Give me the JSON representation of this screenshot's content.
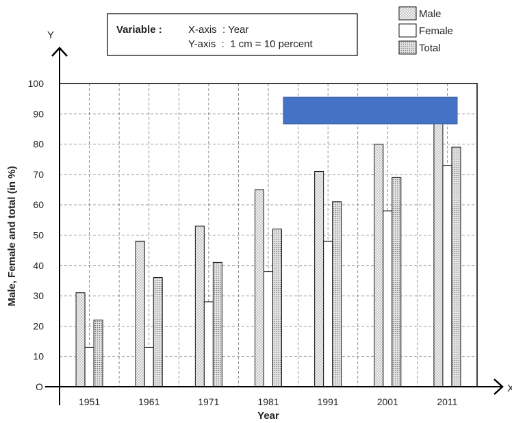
{
  "chart_data": {
    "type": "bar",
    "title": "",
    "xlabel": "Year",
    "ylabel": "Male, Female and total (in %)",
    "x_axis_letter": "X",
    "y_axis_letter": "Y",
    "origin_label": "O",
    "categories": [
      "1951",
      "1961",
      "1971",
      "1981",
      "1991",
      "2001",
      "2011"
    ],
    "series": [
      {
        "name": "Male",
        "values": [
          31,
          48,
          53,
          65,
          71,
          80,
          87
        ]
      },
      {
        "name": "Female",
        "values": [
          13,
          13,
          28,
          38,
          48,
          58,
          73
        ]
      },
      {
        "name": "Total",
        "values": [
          22,
          36,
          41,
          52,
          61,
          69,
          79
        ]
      }
    ],
    "ylim": [
      0,
      100
    ],
    "yticks": [
      10,
      20,
      30,
      40,
      50,
      60,
      70,
      80,
      90,
      100
    ],
    "grid": true,
    "legend_position": "top-right",
    "colors": {
      "male": "#e4e4e4",
      "female": "#ffffff",
      "total": "#cfcfcf",
      "grid": "#777777",
      "axis": "#000000",
      "overlay": "#4472c4"
    }
  },
  "variable_box": {
    "label": "Variable :",
    "x_line": "X-axis  : Year",
    "y_line": "Y-axis  :  1 cm = 10 percent"
  }
}
